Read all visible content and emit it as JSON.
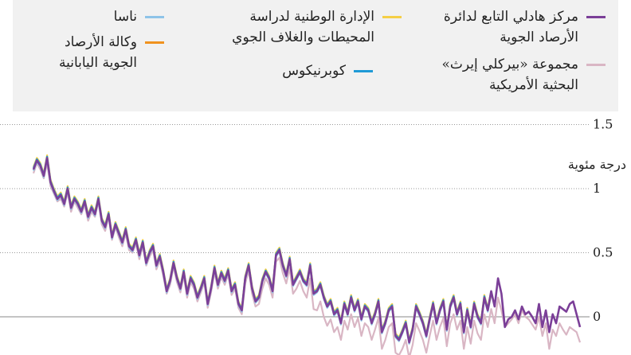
{
  "legend": [
    {
      "name": "مركز هادلي التابع لدائرة",
      "name2": "الأرصاد الجوية",
      "color": "#7b3f98"
    },
    {
      "name": "مجموعة «بيركلي إيرث»",
      "name2": "البحثية الأمريكية",
      "color": "#d9b6c4"
    },
    {
      "name": "الإدارة الوطنية لدراسة",
      "name2": "المحيطات والغلاف الجوي",
      "color": "#f5cf46"
    },
    {
      "name": "كوبرنيكوس",
      "name2": "",
      "color": "#1f9ad6"
    },
    {
      "name": "ناسا",
      "name2": "",
      "color": "#8ec3e8"
    },
    {
      "name": "وكالة الأرصاد",
      "name2": "الجوية اليابانية",
      "color": "#f0921e"
    }
  ],
  "chart_data": {
    "type": "line",
    "ylabel": "درجة مئوية",
    "yticks": [
      "1.5",
      "1",
      "0.5",
      "0"
    ],
    "ytick_values": [
      1.5,
      1,
      0.5,
      0
    ],
    "ylim": [
      -0.3,
      1.5
    ],
    "grid": true,
    "series": [
      {
        "name": "مركز هادلي التابع لدائرة الأرصاد الجوية",
        "color": "#7b3f98",
        "values": [
          1.15,
          1.22,
          1.18,
          1.1,
          1.24,
          1.05,
          0.98,
          0.92,
          0.95,
          0.88,
          1.0,
          0.85,
          0.92,
          0.88,
          0.82,
          0.9,
          0.78,
          0.85,
          0.8,
          0.92,
          0.75,
          0.7,
          0.8,
          0.62,
          0.72,
          0.65,
          0.58,
          0.68,
          0.55,
          0.52,
          0.6,
          0.48,
          0.58,
          0.42,
          0.5,
          0.55,
          0.4,
          0.47,
          0.35,
          0.2,
          0.28,
          0.42,
          0.3,
          0.22,
          0.35,
          0.18,
          0.3,
          0.25,
          0.15,
          0.22,
          0.3,
          0.1,
          0.22,
          0.38,
          0.25,
          0.34,
          0.28,
          0.36,
          0.2,
          0.25,
          0.1,
          0.05,
          0.3,
          0.4,
          0.22,
          0.12,
          0.15,
          0.28,
          0.35,
          0.3,
          0.2,
          0.48,
          0.52,
          0.4,
          0.32,
          0.45,
          0.25,
          0.3,
          0.35,
          0.28,
          0.25,
          0.4,
          0.18,
          0.2,
          0.25,
          0.15,
          0.08,
          0.12,
          0.02,
          0.05,
          -0.05,
          0.1,
          0.02,
          0.15,
          0.05,
          0.12,
          -0.02,
          0.08,
          0.05,
          -0.05,
          0.02,
          0.12,
          -0.12,
          -0.05,
          0.05,
          0.08,
          -0.15,
          -0.18,
          -0.12,
          -0.05,
          -0.2,
          -0.1,
          0.08,
          0.02,
          -0.05,
          -0.15,
          -0.02,
          0.1,
          -0.05,
          0.05,
          0.12,
          -0.1,
          0.08,
          0.15,
          0.02,
          0.1,
          -0.12,
          0.05,
          -0.08,
          0.1,
          0.0,
          -0.05,
          0.15,
          0.05,
          0.2,
          0.08,
          0.3,
          0.18,
          -0.08,
          -0.02,
          0.0,
          0.05,
          -0.02,
          0.08,
          0.02,
          0.04,
          0.0,
          -0.05,
          0.1,
          -0.08,
          0.05,
          -0.12,
          0.02,
          -0.05,
          0.08,
          0.06,
          0.04,
          0.1,
          0.12,
          0.02,
          -0.08
        ]
      },
      {
        "name": "مجموعة «بيركلي إيرث» البحثية الأمريكية",
        "color": "#d9b6c4",
        "values": [
          1.12,
          1.2,
          1.15,
          1.08,
          1.2,
          1.02,
          0.96,
          0.9,
          0.92,
          0.86,
          0.97,
          0.82,
          0.9,
          0.85,
          0.8,
          0.87,
          0.75,
          0.82,
          0.78,
          0.9,
          0.72,
          0.67,
          0.78,
          0.6,
          0.7,
          0.62,
          0.55,
          0.65,
          0.52,
          0.5,
          0.57,
          0.45,
          0.55,
          0.4,
          0.47,
          0.52,
          0.37,
          0.44,
          0.32,
          0.18,
          0.25,
          0.39,
          0.27,
          0.19,
          0.32,
          0.15,
          0.27,
          0.22,
          0.12,
          0.19,
          0.27,
          0.07,
          0.19,
          0.35,
          0.22,
          0.31,
          0.25,
          0.33,
          0.17,
          0.22,
          0.07,
          0.02,
          0.26,
          0.36,
          0.18,
          0.08,
          0.1,
          0.22,
          0.3,
          0.25,
          0.15,
          0.43,
          0.46,
          0.34,
          0.26,
          0.38,
          0.18,
          0.22,
          0.28,
          0.2,
          0.15,
          0.3,
          0.06,
          0.05,
          0.12,
          0.0,
          -0.07,
          -0.02,
          -0.12,
          -0.08,
          -0.18,
          -0.03,
          -0.1,
          0.02,
          -0.08,
          -0.01,
          -0.15,
          -0.05,
          -0.08,
          -0.18,
          -0.1,
          -0.01,
          -0.25,
          -0.18,
          -0.08,
          -0.05,
          -0.28,
          -0.3,
          -0.25,
          -0.18,
          -0.32,
          -0.22,
          -0.05,
          -0.11,
          -0.18,
          -0.28,
          -0.15,
          -0.03,
          -0.18,
          -0.08,
          -0.01,
          -0.23,
          -0.05,
          0.02,
          -0.1,
          -0.03,
          -0.25,
          -0.08,
          -0.21,
          -0.03,
          -0.13,
          -0.18,
          0.02,
          -0.08,
          0.06,
          -0.05,
          0.15,
          0.05,
          -0.08,
          -0.05,
          -0.02,
          0.02,
          -0.05,
          0.05,
          0.0,
          -0.02,
          -0.06,
          -0.1,
          0.0,
          -0.15,
          -0.05,
          -0.25,
          -0.1,
          -0.15,
          -0.05,
          -0.1,
          -0.14,
          -0.08,
          -0.1,
          -0.12,
          -0.2
        ]
      },
      {
        "name": "الإدارة الوطنية لدراسة المحيطات والغلاف الجوي",
        "color": "#f5cf46",
        "values": [
          1.17,
          1.24,
          1.2,
          1.12,
          1.26,
          1.07,
          1.0,
          0.94,
          0.97,
          0.9,
          1.02,
          0.87,
          0.94,
          0.9,
          0.84,
          0.92,
          0.8,
          0.87,
          0.82,
          0.94,
          0.77,
          0.72,
          0.82,
          0.64,
          0.74,
          0.67,
          0.6,
          0.7,
          0.57,
          0.54,
          0.62,
          0.5,
          0.6,
          0.44,
          0.52,
          0.57,
          0.42,
          0.49,
          0.37,
          0.22,
          0.3,
          0.44,
          0.32,
          0.24,
          0.37,
          0.2,
          0.32,
          0.27,
          0.17,
          0.24,
          0.32,
          0.12,
          0.24,
          0.4,
          0.27,
          0.36,
          0.3,
          0.38,
          0.22,
          0.27,
          0.12,
          0.07,
          0.32,
          0.42,
          0.24,
          0.14,
          0.17,
          0.3,
          0.37,
          0.32,
          0.22,
          0.5,
          0.54,
          0.42,
          0.34,
          0.47,
          0.27,
          0.32,
          0.37,
          0.3,
          0.27,
          0.42,
          0.2,
          0.22,
          0.27,
          0.17,
          0.1,
          0.14,
          0.04,
          0.07,
          -0.03,
          0.12,
          0.04,
          0.17,
          0.07,
          0.14,
          0.0,
          0.1,
          0.07,
          -0.03,
          0.04,
          0.14,
          -0.1,
          -0.03,
          0.07,
          0.1,
          -0.13,
          -0.16,
          -0.1,
          -0.03,
          -0.18,
          -0.08,
          0.1,
          0.04,
          -0.03,
          -0.13,
          0.0,
          0.12,
          -0.03,
          0.07,
          0.14,
          -0.08,
          0.1,
          0.17,
          0.04,
          0.12,
          -0.1,
          0.07,
          -0.06,
          0.12,
          0.02,
          -0.03,
          0.17,
          0.07,
          0.2
        ]
      },
      {
        "name": "كوبرنيكوس",
        "color": "#1f9ad6",
        "values": [
          1.16,
          1.23,
          1.19,
          1.11,
          1.25,
          1.06,
          0.99,
          0.93,
          0.96,
          0.89,
          1.01,
          0.86,
          0.93,
          0.89,
          0.83,
          0.91,
          0.79,
          0.86,
          0.81,
          0.93,
          0.76,
          0.71,
          0.81,
          0.63,
          0.73,
          0.66,
          0.59,
          0.69,
          0.56,
          0.53,
          0.61,
          0.49,
          0.59,
          0.43,
          0.51,
          0.56,
          0.41,
          0.48,
          0.36,
          0.21,
          0.29,
          0.43,
          0.31,
          0.23,
          0.36,
          0.19,
          0.31,
          0.26,
          0.16,
          0.23,
          0.31,
          0.11,
          0.23,
          0.39,
          0.26,
          0.35,
          0.29,
          0.37,
          0.21,
          0.26,
          0.11,
          0.06,
          0.31,
          0.41,
          0.23,
          0.13,
          0.16,
          0.29,
          0.36,
          0.31,
          0.21,
          0.49,
          0.53,
          0.41,
          0.33,
          0.46,
          0.26,
          0.31,
          0.36,
          0.29,
          0.26,
          0.41,
          0.19,
          0.21,
          0.26,
          0.16,
          0.09,
          0.13,
          0.03,
          0.06,
          -0.04,
          0.11,
          0.03,
          0.16,
          0.06,
          0.13,
          -0.01,
          0.09,
          0.06,
          -0.04,
          0.03,
          0.13,
          -0.11,
          -0.04,
          0.06,
          0.09,
          -0.14,
          -0.17,
          -0.11,
          -0.04,
          -0.19,
          -0.09,
          0.09,
          0.03,
          -0.04,
          -0.14,
          -0.01,
          0.11,
          -0.04,
          0.06,
          0.13,
          -0.09,
          0.09,
          0.16,
          0.03,
          0.11,
          -0.11,
          0.06,
          -0.07,
          0.11,
          0.01,
          -0.04,
          0.16,
          0.06,
          0.19
        ]
      },
      {
        "name": "ناسا",
        "color": "#8ec3e8",
        "values": [
          1.14,
          1.21,
          1.17,
          1.09,
          1.23,
          1.04,
          0.97,
          0.91,
          0.94,
          0.87,
          0.99,
          0.84,
          0.91,
          0.87,
          0.81,
          0.89,
          0.77,
          0.84,
          0.79,
          0.91,
          0.74,
          0.69,
          0.79,
          0.61,
          0.71,
          0.64,
          0.57,
          0.67,
          0.54,
          0.51,
          0.59,
          0.47,
          0.57,
          0.41,
          0.49,
          0.54,
          0.39,
          0.46,
          0.34,
          0.19,
          0.27,
          0.41,
          0.29,
          0.21,
          0.34,
          0.17,
          0.29,
          0.24,
          0.14,
          0.21,
          0.29,
          0.09,
          0.21,
          0.37,
          0.24,
          0.33,
          0.27,
          0.35,
          0.19,
          0.24,
          0.09,
          0.04,
          0.29,
          0.39,
          0.21,
          0.11,
          0.14,
          0.27,
          0.34,
          0.29,
          0.19,
          0.47,
          0.51,
          0.39,
          0.31,
          0.44,
          0.24,
          0.29,
          0.34,
          0.27,
          0.24,
          0.39,
          0.17,
          0.19,
          0.24,
          0.14,
          0.07,
          0.11,
          0.01,
          0.04,
          -0.06,
          0.09,
          0.01,
          0.14,
          0.04,
          0.11,
          -0.03,
          0.07,
          0.04,
          -0.06,
          0.01,
          0.11,
          -0.13,
          -0.06,
          0.04,
          0.07,
          -0.16,
          -0.19,
          -0.13,
          -0.06,
          -0.21,
          -0.11,
          0.07,
          0.01,
          -0.06,
          -0.16,
          -0.03,
          0.09,
          -0.06,
          0.04,
          0.11,
          -0.11,
          0.07,
          0.14,
          0.01,
          0.09,
          -0.13,
          0.04,
          -0.09,
          0.09,
          -0.01,
          -0.06,
          0.14,
          0.04,
          0.17
        ]
      },
      {
        "name": "وكالة الأرصاد الجوية اليابانية",
        "color": "#f0921e",
        "values": [
          1.15,
          1.22,
          1.18,
          1.1,
          1.24,
          1.05,
          0.98,
          0.92,
          0.95,
          0.88,
          1.0,
          0.85,
          0.92,
          0.88,
          0.82,
          0.9,
          0.78,
          0.85,
          0.8,
          0.92,
          0.75,
          0.7,
          0.8,
          0.62,
          0.72,
          0.65,
          0.58,
          0.68,
          0.55,
          0.52,
          0.6,
          0.48,
          0.58,
          0.42,
          0.5,
          0.55,
          0.4,
          0.47,
          0.35,
          0.2,
          0.28,
          0.42,
          0.3,
          0.22,
          0.35,
          0.18,
          0.3,
          0.25,
          0.15,
          0.22,
          0.3,
          0.1,
          0.22,
          0.38,
          0.25,
          0.34,
          0.28,
          0.36,
          0.2,
          0.25,
          0.1,
          0.05,
          0.3,
          0.4,
          0.22,
          0.12,
          0.15,
          0.28,
          0.35,
          0.3,
          0.2,
          0.48,
          0.52,
          0.4,
          0.32,
          0.45,
          0.25,
          0.3,
          0.35,
          0.28,
          0.25,
          0.4,
          0.18,
          0.2,
          0.25,
          0.15,
          0.08,
          0.12,
          0.02,
          0.05,
          -0.05,
          0.1,
          0.02,
          0.15,
          0.05,
          0.12,
          -0.02,
          0.08,
          0.05,
          -0.05,
          0.02,
          0.12,
          -0.12,
          -0.05,
          0.05,
          0.08,
          -0.15,
          -0.18,
          -0.12,
          -0.05,
          -0.2,
          -0.1,
          0.08,
          0.02,
          -0.05,
          -0.15,
          -0.02,
          0.1,
          -0.05,
          0.05,
          0.12,
          -0.1,
          0.08,
          0.15,
          0.02,
          0.1,
          -0.12,
          0.05,
          -0.08,
          0.1,
          0.0,
          -0.05,
          0.15,
          0.05,
          0.18
        ]
      }
    ]
  }
}
